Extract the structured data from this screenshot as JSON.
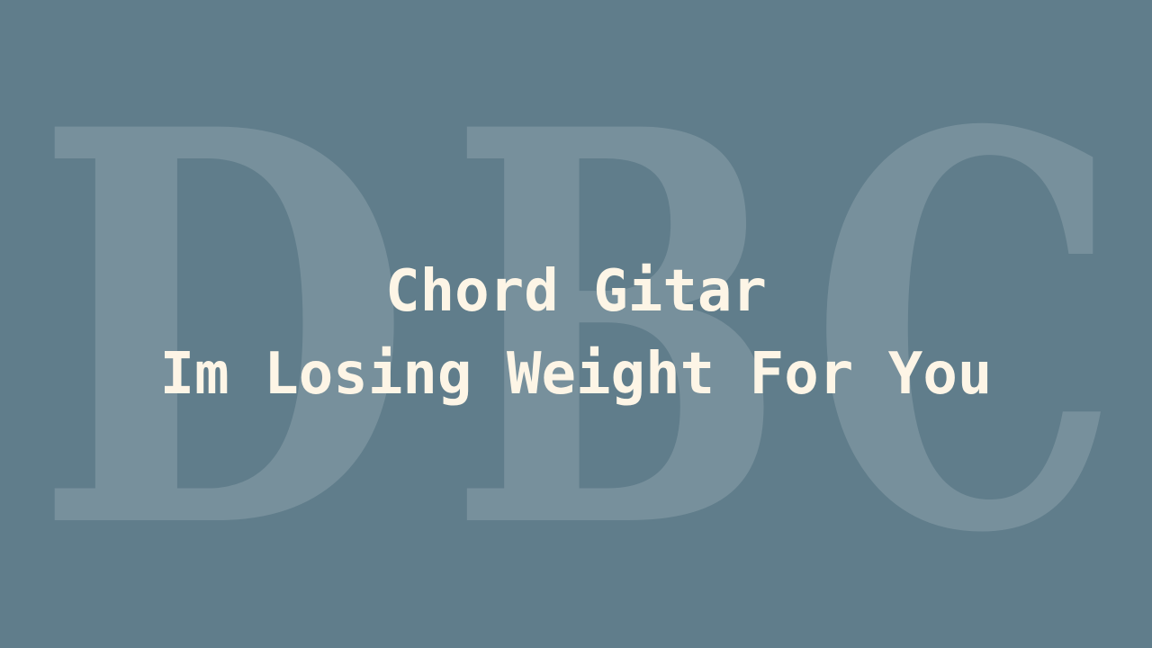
{
  "watermark": {
    "letters": [
      "D",
      "B",
      "C"
    ]
  },
  "title": {
    "line1": "Chord Gitar",
    "line2": "Im Losing Weight For You"
  },
  "colors": {
    "background": "#607d8b",
    "title_text": "#fdf5e6",
    "watermark": "#ffffff"
  }
}
